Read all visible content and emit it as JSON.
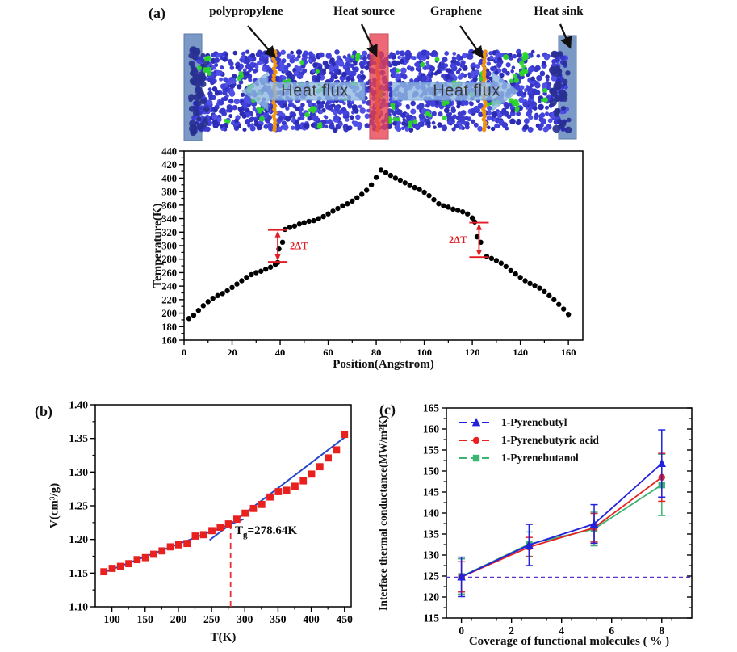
{
  "panels": {
    "a": "(a)",
    "b": "(b)",
    "c": "(c)"
  },
  "diagram": {
    "annotations": [
      "polypropylene",
      "Heat source",
      "Graphene",
      "Heat sink"
    ],
    "heat_flux_label": "Heat flux",
    "colors": {
      "matrix_blue": "#3c3cd0",
      "filler_green": "#2bd62b",
      "graphene_orange": "#f0930f",
      "heat_source_red": "#e84050",
      "heat_sink_blue": "#6c8fc0",
      "flux_arrow_blue": "#8fb8e0"
    }
  },
  "chart_data": [
    {
      "id": "temperature-profile",
      "type": "scatter",
      "xlabel": "Position(Angstrom)",
      "ylabel": "Temperature(K)",
      "xlim": [
        0,
        166
      ],
      "ylim": [
        160,
        440
      ],
      "xticks": [
        0,
        20,
        40,
        60,
        80,
        100,
        120,
        140,
        160
      ],
      "yticks": [
        160,
        180,
        200,
        220,
        240,
        260,
        280,
        300,
        320,
        340,
        360,
        380,
        400,
        420,
        440
      ],
      "marker": {
        "shape": "circle",
        "color": "#000000",
        "size": 3.2
      },
      "annotation_color": "#e31b23",
      "delta_annotations": [
        {
          "label": "2ΔT",
          "x": 39,
          "y_top": 323,
          "y_bottom": 276,
          "label_side": "right"
        },
        {
          "label": "2ΔT",
          "x": 122.8,
          "y_top": 334,
          "y_bottom": 283,
          "label_side": "left"
        }
      ],
      "points": [
        [
          2,
          192
        ],
        [
          4,
          197
        ],
        [
          6,
          204
        ],
        [
          8,
          211
        ],
        [
          10,
          217
        ],
        [
          12,
          222
        ],
        [
          14,
          226
        ],
        [
          16,
          229
        ],
        [
          18,
          233
        ],
        [
          20,
          238
        ],
        [
          22,
          243
        ],
        [
          24,
          248
        ],
        [
          26,
          253
        ],
        [
          28,
          257
        ],
        [
          30,
          260
        ],
        [
          32,
          262
        ],
        [
          34,
          265
        ],
        [
          36,
          268
        ],
        [
          38,
          272
        ],
        [
          39,
          275
        ],
        [
          39.5,
          295
        ],
        [
          41,
          305
        ],
        [
          42,
          324
        ],
        [
          44,
          327
        ],
        [
          46,
          329
        ],
        [
          48,
          332
        ],
        [
          50,
          334
        ],
        [
          52,
          336
        ],
        [
          54,
          337
        ],
        [
          56,
          340
        ],
        [
          58,
          343
        ],
        [
          60,
          347
        ],
        [
          62,
          351
        ],
        [
          64,
          355
        ],
        [
          66,
          359
        ],
        [
          68,
          362
        ],
        [
          70,
          366
        ],
        [
          72,
          371
        ],
        [
          74,
          376
        ],
        [
          76,
          382
        ],
        [
          78,
          390
        ],
        [
          80,
          401
        ],
        [
          82,
          412
        ],
        [
          84,
          408
        ],
        [
          86,
          404
        ],
        [
          88,
          400
        ],
        [
          90,
          397
        ],
        [
          92,
          393
        ],
        [
          94,
          389
        ],
        [
          96,
          386
        ],
        [
          98,
          383
        ],
        [
          100,
          379
        ],
        [
          102,
          374
        ],
        [
          104,
          368
        ],
        [
          106,
          362
        ],
        [
          108,
          359
        ],
        [
          110,
          357
        ],
        [
          112,
          354
        ],
        [
          114,
          352
        ],
        [
          116,
          350
        ],
        [
          118,
          347
        ],
        [
          120,
          341
        ],
        [
          121,
          335
        ],
        [
          122,
          313
        ],
        [
          123.5,
          305
        ],
        [
          126,
          284
        ],
        [
          128,
          281
        ],
        [
          130,
          278
        ],
        [
          132,
          274
        ],
        [
          134,
          269
        ],
        [
          136,
          263
        ],
        [
          138,
          258
        ],
        [
          140,
          253
        ],
        [
          142,
          248
        ],
        [
          144,
          244
        ],
        [
          146,
          241
        ],
        [
          148,
          237
        ],
        [
          150,
          232
        ],
        [
          152,
          226
        ],
        [
          154,
          220
        ],
        [
          156,
          213
        ],
        [
          158,
          206
        ],
        [
          160,
          198
        ]
      ]
    },
    {
      "id": "specific-volume",
      "type": "scatter",
      "xlabel": "T(K)",
      "ylabel": "V(cm³/g)",
      "xlim": [
        75,
        460
      ],
      "ylim": [
        1.1,
        1.4
      ],
      "xticks": [
        100,
        150,
        200,
        250,
        300,
        350,
        400,
        450
      ],
      "yticks": [
        1.1,
        1.15,
        1.2,
        1.25,
        1.3,
        1.35,
        1.4
      ],
      "marker": {
        "shape": "square",
        "color": "#e8201e",
        "size": 4.4
      },
      "fit_lines": {
        "color": "#2547cc",
        "segments": [
          [
            85,
            1.15,
            298,
            1.23
          ],
          [
            247,
            1.199,
            452,
            1.353
          ]
        ]
      },
      "dashed_vline": {
        "x": 278.64,
        "y_top": 1.2225,
        "color": "#e83038"
      },
      "tg_annotation": {
        "prefix": "T",
        "sub": "g",
        "rest": "=278.64K"
      },
      "points": [
        [
          88,
          1.152
        ],
        [
          100.5,
          1.157
        ],
        [
          113,
          1.16
        ],
        [
          125.5,
          1.164
        ],
        [
          138,
          1.17
        ],
        [
          150.5,
          1.173
        ],
        [
          163,
          1.178
        ],
        [
          175.5,
          1.183
        ],
        [
          188,
          1.189
        ],
        [
          200.5,
          1.192
        ],
        [
          213,
          1.194
        ],
        [
          225.5,
          1.205
        ],
        [
          238,
          1.207
        ],
        [
          250.5,
          1.213
        ],
        [
          263,
          1.218
        ],
        [
          275.5,
          1.223
        ],
        [
          288,
          1.23
        ],
        [
          300.5,
          1.239
        ],
        [
          313,
          1.246
        ],
        [
          325.5,
          1.252
        ],
        [
          338,
          1.263
        ],
        [
          350.5,
          1.271
        ],
        [
          363,
          1.273
        ],
        [
          375.5,
          1.279
        ],
        [
          388,
          1.287
        ],
        [
          400.5,
          1.297
        ],
        [
          413,
          1.308
        ],
        [
          425.5,
          1.321
        ],
        [
          438,
          1.333
        ],
        [
          450,
          1.356
        ]
      ]
    },
    {
      "id": "interface-conductance",
      "type": "line",
      "xlabel": "Coverage of functional molecules ( % )",
      "ylabel": "Interface thermal conductance(MW/m²K)",
      "xlim": [
        -0.6,
        9.2
      ],
      "ylim": [
        115,
        165
      ],
      "xticks": [
        0,
        2,
        4,
        6,
        8
      ],
      "yticks": [
        115,
        120,
        125,
        130,
        135,
        140,
        145,
        150,
        155,
        160,
        165
      ],
      "x": [
        0,
        2.7,
        5.3,
        8
      ],
      "series": [
        {
          "name": "1-Pyrenebutyl",
          "marker": "triangle",
          "color": "#2121de",
          "values": [
            124.8,
            132.4,
            137.4,
            151.8
          ],
          "errors": [
            4.7,
            4.9,
            4.6,
            8.0
          ]
        },
        {
          "name": "1-Pyrenebutyric acid",
          "marker": "circle",
          "color": "#e8201e",
          "values": [
            124.8,
            131.9,
            136.5,
            148.5
          ],
          "errors": [
            3.6,
            2.3,
            3.4,
            5.7
          ]
        },
        {
          "name": "1-Pyrenebutanol",
          "marker": "square",
          "color": "#3cb371",
          "values": [
            124.9,
            132.6,
            136.2,
            146.7
          ],
          "errors": [
            4.2,
            2.9,
            4.0,
            7.3
          ]
        }
      ],
      "baseline": {
        "y": 124.7,
        "color": "#5a35c8"
      }
    }
  ]
}
